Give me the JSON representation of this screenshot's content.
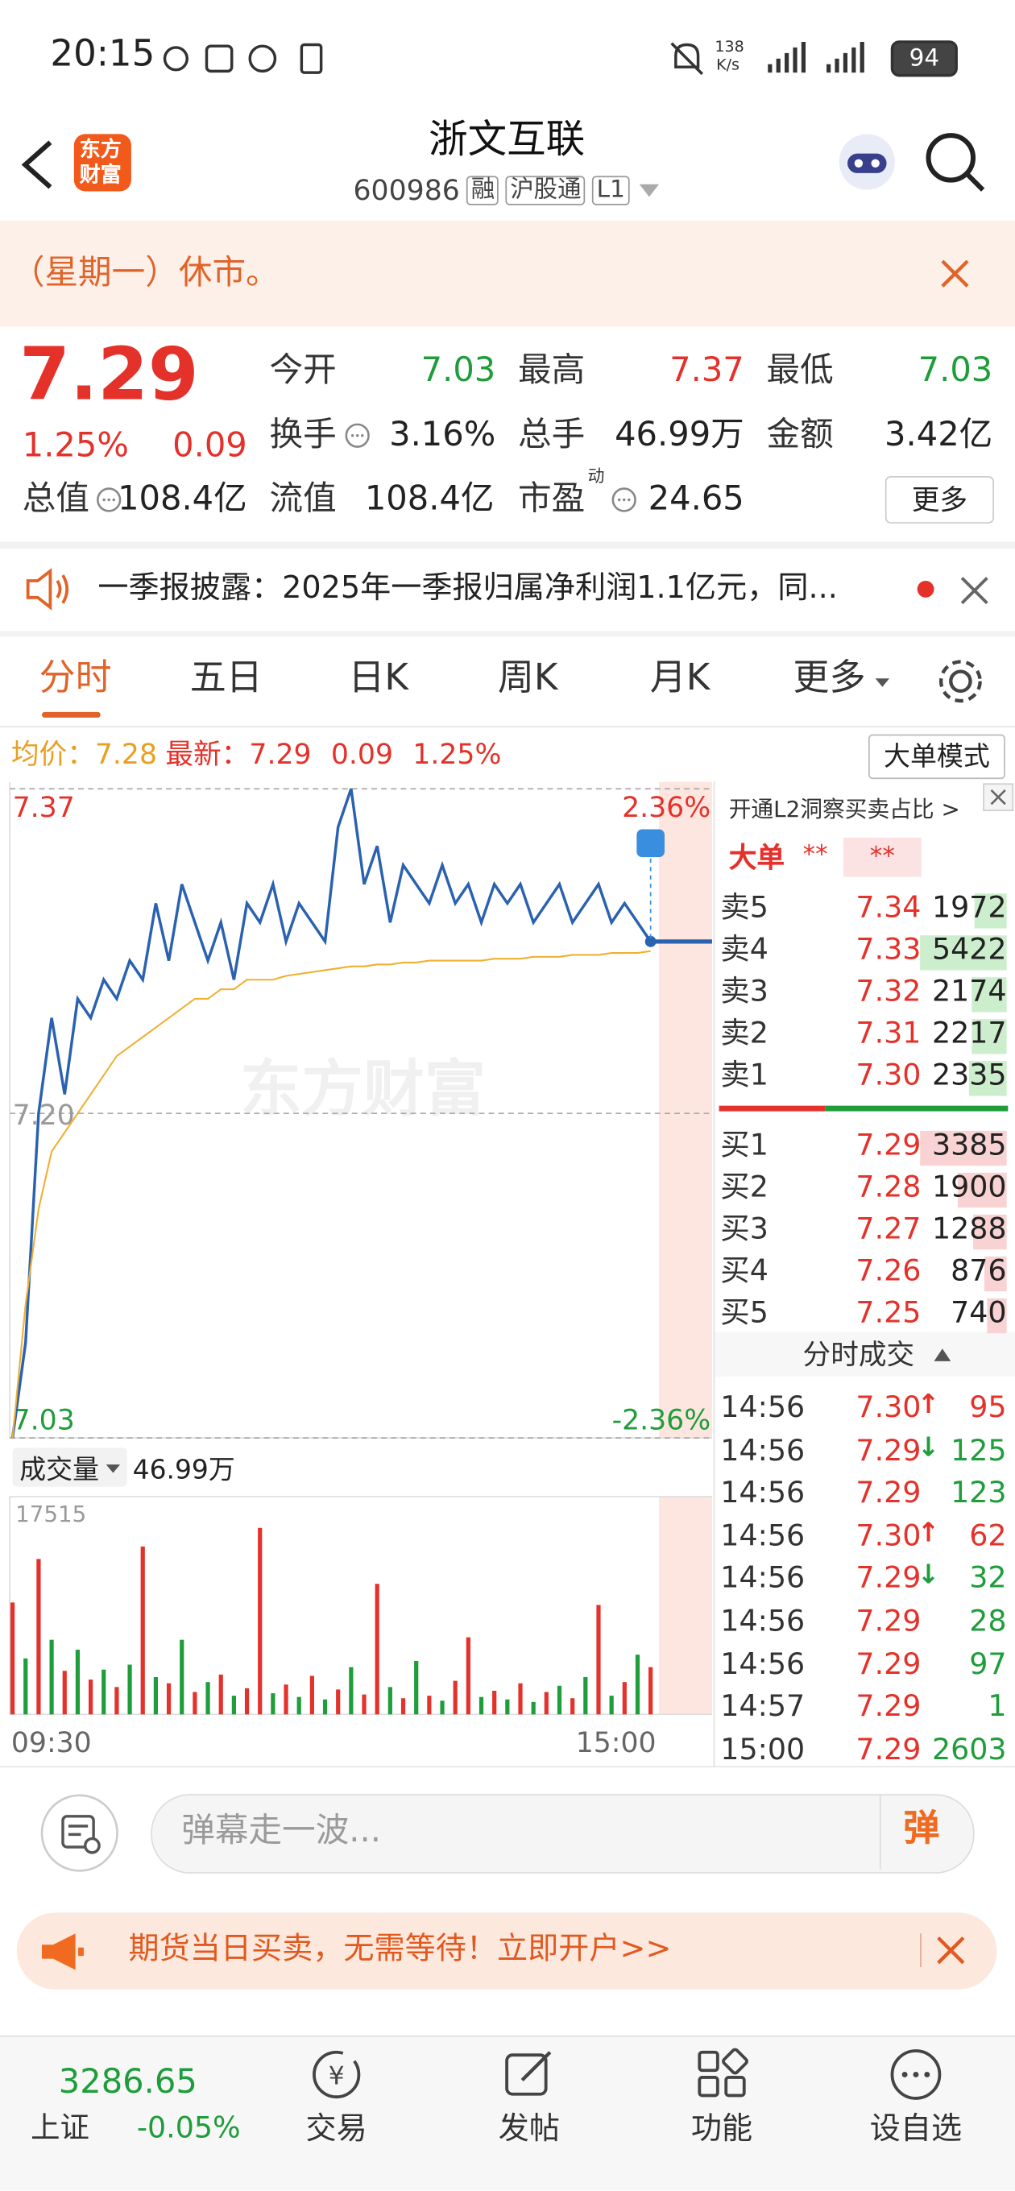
{
  "status_bar": {
    "time": "20:15",
    "net_speed": "138",
    "net_unit": "K/s",
    "battery": "94"
  },
  "header": {
    "logo_top": "东方",
    "logo_bottom": "财富",
    "title": "浙文互联",
    "code": "600986",
    "tags": [
      "融",
      "沪股通",
      "L1"
    ]
  },
  "notice": "（星期一）休市。",
  "quote": {
    "price": "7.29",
    "change_pct": "1.25%",
    "change": "0.09",
    "more": "更多",
    "stats": [
      {
        "label": "今开",
        "value": "7.03",
        "color": "#1f9d3b"
      },
      {
        "label": "最高",
        "value": "7.37",
        "color": "#e4322b"
      },
      {
        "label": "最低",
        "value": "7.03",
        "color": "#1f9d3b"
      },
      {
        "label": "换手",
        "value": "3.16%"
      },
      {
        "label": "总手",
        "value": "46.99万"
      },
      {
        "label": "金额",
        "value": "3.42亿"
      },
      {
        "label": "总值",
        "value": "108.4亿"
      },
      {
        "label": "流值",
        "value": "108.4亿"
      },
      {
        "label": "市盈",
        "sup": "动",
        "value": "24.65"
      }
    ]
  },
  "news": "一季报披露：2025年一季报归属净利润1.1亿元，同...",
  "tabs": {
    "items": [
      "分时",
      "五日",
      "日K",
      "周K",
      "月K",
      "更多"
    ],
    "active": 0
  },
  "info_bar": {
    "avg_label": "均价：",
    "avg": "7.28",
    "latest_label": "最新：",
    "latest": "7.29",
    "change": "0.09",
    "change_pct": "1.25%",
    "mode_button": "大单模式"
  },
  "watermark": "东方财富",
  "chart_data": [
    {
      "type": "line",
      "categories": [
        "09:30",
        null,
        null,
        null,
        null,
        null,
        null,
        null,
        null,
        null,
        null,
        null,
        null,
        null,
        null,
        null,
        null,
        null,
        null,
        null,
        null,
        null,
        null,
        null,
        null,
        null,
        null,
        null,
        null,
        null,
        null,
        null,
        null,
        null,
        null,
        null,
        null,
        null,
        null,
        null,
        null,
        null,
        null,
        null,
        null,
        null,
        null,
        null,
        null,
        "15:00"
      ],
      "ylim": [
        7.03,
        7.37
      ],
      "yticks": [
        7.37,
        {
          "value": 7.2,
          "label": "7.20"
        },
        7.03
      ],
      "y2lim": [
        -2.36,
        2.36
      ],
      "y2ticks": [
        {
          "value": 2.36,
          "label": "2.36%"
        },
        {
          "value": -2.36,
          "label": "-2.36%"
        }
      ],
      "grid": true,
      "series": [
        {
          "color": "#2a62b0",
          "values": [
            7.03,
            7.08,
            7.2,
            7.25,
            7.21,
            7.26,
            7.25,
            7.27,
            7.26,
            7.28,
            7.27,
            7.31,
            7.28,
            7.32,
            7.3,
            7.28,
            7.3,
            7.27,
            7.31,
            7.3,
            7.32,
            7.29,
            7.31,
            7.3,
            7.29,
            7.35,
            7.37,
            7.32,
            7.34,
            7.3,
            7.33,
            7.32,
            7.31,
            7.33,
            7.31,
            7.32,
            7.3,
            7.32,
            7.31,
            7.32,
            7.3,
            7.31,
            7.32,
            7.3,
            7.31,
            7.32,
            7.3,
            7.31,
            7.3,
            7.29
          ]
        },
        {
          "color": "#f0b030",
          "values": [
            7.03,
            7.1,
            7.15,
            7.18,
            7.19,
            7.2,
            7.21,
            7.22,
            7.23,
            7.235,
            7.24,
            7.245,
            7.25,
            7.255,
            7.26,
            7.26,
            7.265,
            7.265,
            7.27,
            7.27,
            7.27,
            7.272,
            7.273,
            7.274,
            7.275,
            7.276,
            7.277,
            7.277,
            7.278,
            7.278,
            7.279,
            7.279,
            7.28,
            7.28,
            7.28,
            7.28,
            7.28,
            7.281,
            7.281,
            7.281,
            7.282,
            7.282,
            7.282,
            7.283,
            7.283,
            7.283,
            7.284,
            7.284,
            7.284,
            7.285
          ]
        }
      ]
    },
    {
      "type": "bar",
      "title": "成交量",
      "subtitle": "46.99万",
      "ylim": [
        0,
        17515
      ],
      "yticks": [
        17515
      ],
      "series": [
        {
          "color": "#e4322b",
          "values": [
            9000,
            null,
            12500,
            null,
            3500,
            null,
            2800,
            null,
            2200,
            null,
            13500,
            null,
            2500,
            null,
            1800,
            null,
            3200,
            null,
            2100,
            15000,
            null,
            2400,
            null,
            3100,
            null,
            2000,
            null,
            1600,
            10500,
            null,
            1300,
            null,
            1500,
            null,
            2700,
            6200,
            null,
            1900,
            null,
            2500,
            null,
            1800,
            null,
            1300,
            null,
            8800,
            null,
            2600,
            null,
            3800
          ]
        },
        {
          "color": "#1f9d3b",
          "values": [
            null,
            4500,
            null,
            6000,
            null,
            5200,
            null,
            3600,
            null,
            4000,
            null,
            3000,
            null,
            6000,
            null,
            2600,
            null,
            1500,
            null,
            null,
            1700,
            null,
            1400,
            null,
            1200,
            null,
            3800,
            null,
            null,
            2200,
            null,
            4300,
            null,
            1100,
            null,
            null,
            1400,
            null,
            1200,
            null,
            1000,
            null,
            2300,
            null,
            3000,
            null,
            1500,
            null,
            4800,
            null
          ]
        }
      ]
    }
  ],
  "order_book": {
    "l2_link": "开通L2洞察买卖占比 >",
    "big_order_label": "大单",
    "big_order_values": [
      "**",
      "**"
    ],
    "asks": [
      {
        "label": "卖5",
        "price": "7.34",
        "volume": 1972
      },
      {
        "label": "卖4",
        "price": "7.33",
        "volume": 5422
      },
      {
        "label": "卖3",
        "price": "7.32",
        "volume": 2174
      },
      {
        "label": "卖2",
        "price": "7.31",
        "volume": 2217
      },
      {
        "label": "卖1",
        "price": "7.30",
        "volume": 2335
      }
    ],
    "bids": [
      {
        "label": "买1",
        "price": "7.29",
        "volume": 3385
      },
      {
        "label": "买2",
        "price": "7.28",
        "volume": 1900
      },
      {
        "label": "买3",
        "price": "7.27",
        "volume": 1288
      },
      {
        "label": "买4",
        "price": "7.26",
        "volume": 876
      },
      {
        "label": "买5",
        "price": "7.25",
        "volume": 740
      }
    ]
  },
  "trades": {
    "title": "分时成交",
    "rows": [
      {
        "time": "14:56",
        "price": "7.30",
        "arrow": "↑",
        "volume": "95",
        "color": "#e4322b"
      },
      {
        "time": "14:56",
        "price": "7.29",
        "arrow": "↓",
        "volume": "125",
        "color": "#1f9d3b"
      },
      {
        "time": "14:56",
        "price": "7.29",
        "volume": "123",
        "color": "#1f9d3b"
      },
      {
        "time": "14:56",
        "price": "7.30",
        "arrow": "↑",
        "volume": "62",
        "color": "#e4322b"
      },
      {
        "time": "14:56",
        "price": "7.29",
        "arrow": "↓",
        "volume": "32",
        "color": "#1f9d3b"
      },
      {
        "time": "14:56",
        "price": "7.29",
        "volume": "28",
        "color": "#1f9d3b"
      },
      {
        "time": "14:56",
        "price": "7.29",
        "volume": "97",
        "color": "#1f9d3b"
      },
      {
        "time": "14:57",
        "price": "7.29",
        "volume": "1",
        "color": "#1f9d3b"
      },
      {
        "time": "15:00",
        "price": "7.29",
        "volume": "2603",
        "color": "#1f9d3b"
      }
    ]
  },
  "comment_bar": {
    "placeholder": "弹幕走一波...",
    "button": "弹"
  },
  "ad": "期货当日买卖，无需等待！立即开户>>",
  "bottom_nav": {
    "index_value": "3286.65",
    "index_name": "上证",
    "index_change": "-0.05%",
    "items": [
      "交易",
      "发帖",
      "功能",
      "设自选"
    ]
  }
}
